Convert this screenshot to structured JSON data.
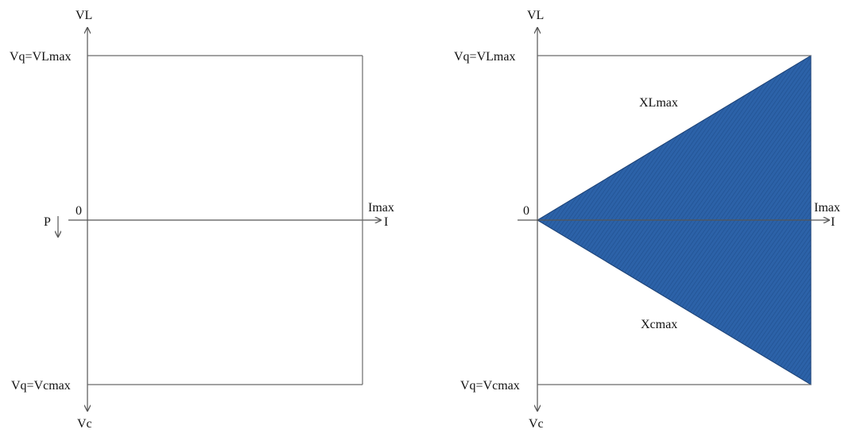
{
  "left_diagram": {
    "axis_top_label": "VL",
    "axis_bottom_label": "Vc",
    "axis_right_label": "I",
    "imax_label": "Imax",
    "origin_label": "0",
    "p_label": "P",
    "vl_max_label": "Vq=VLmax",
    "vc_max_label": "Vq=Vcmax"
  },
  "right_diagram": {
    "axis_top_label": "VL",
    "axis_bottom_label": "Vc",
    "axis_right_label": "I",
    "imax_label": "Imax",
    "origin_label": "0",
    "vl_max_label": "Vq=VLmax",
    "vc_max_label": "Vq=Vcmax",
    "xl_label": "XLmax",
    "xc_label": "Xcmax",
    "fill_color": "#2c62a8"
  }
}
